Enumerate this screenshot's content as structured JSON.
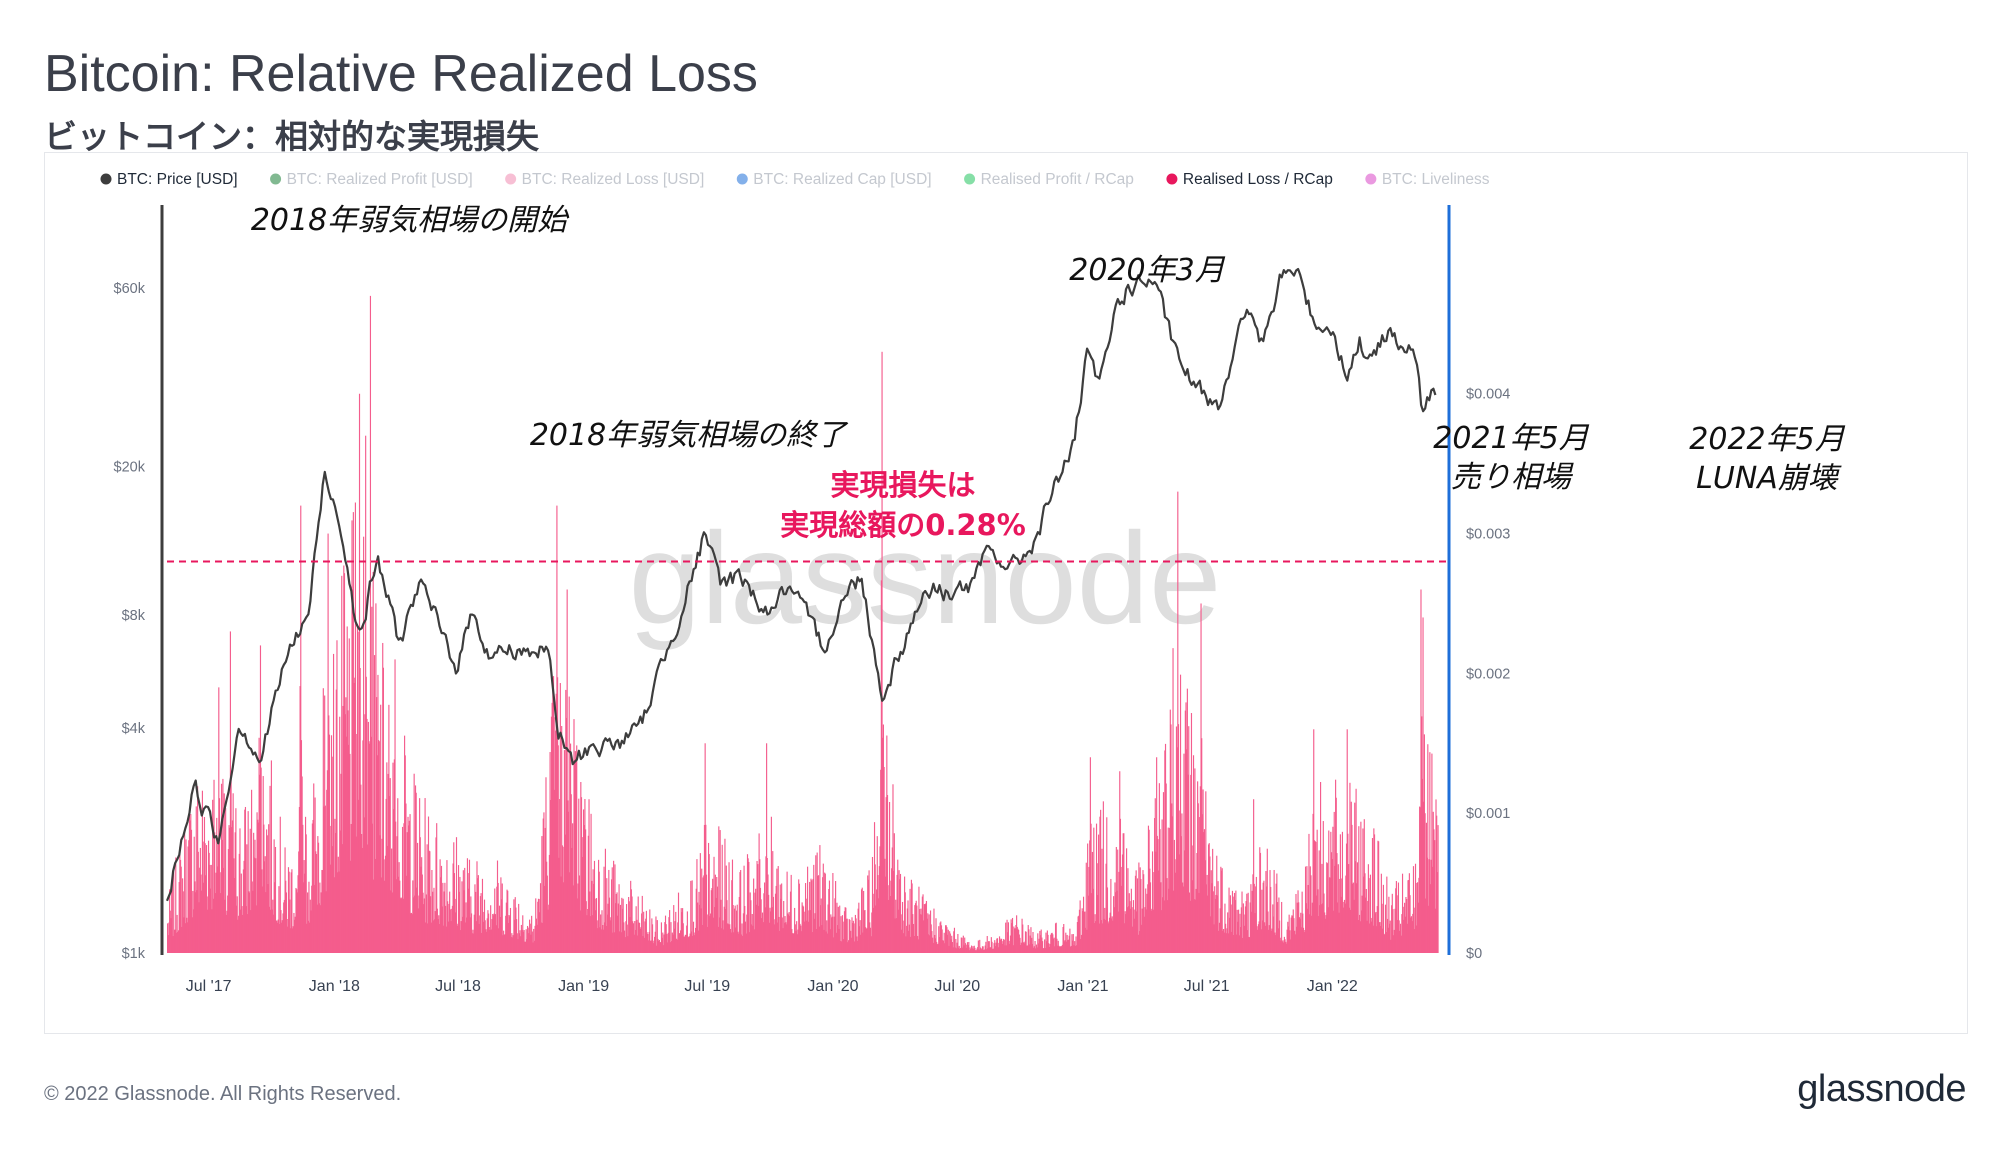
{
  "title": "Bitcoin: Relative Realized Loss",
  "subtitle": "ビットコイン：相対的な実現損失",
  "footer": "© 2022 Glassnode. All Rights Reserved.",
  "brand": "glassnode",
  "watermark": "glassnode",
  "colors": {
    "price": "#3d3d3d",
    "loss": "#f45d8d",
    "threshold": "#e8175d",
    "right_axis": "#1e6fd9"
  },
  "chart_data": {
    "type": "line",
    "legend": [
      {
        "label": "BTC: Price [USD]",
        "color": "#3d3d3d",
        "active": true
      },
      {
        "label": "BTC: Realized Profit [USD]",
        "color": "#1a7f37",
        "active": false
      },
      {
        "label": "BTC: Realized Loss [USD]",
        "color": "#f08bb0",
        "active": false
      },
      {
        "label": "BTC: Realized Cap [USD]",
        "color": "#1e6fd9",
        "active": false
      },
      {
        "label": "Realised Profit / RCap",
        "color": "#22c55e",
        "active": false
      },
      {
        "label": "Realised Loss / RCap",
        "color": "#e8175d",
        "active": true
      },
      {
        "label": "BTC: Liveliness",
        "color": "#d946c7",
        "active": false
      }
    ],
    "x_ticks": [
      "Jul '17",
      "Jan '18",
      "Jul '18",
      "Jan '19",
      "Jul '19",
      "Jan '20",
      "Jul '20",
      "Jan '21",
      "Jul '21",
      "Jan '22"
    ],
    "x_range": [
      "2017-05-01",
      "2022-06-15"
    ],
    "left_axis": {
      "scale": "log",
      "ticks": [
        "$1k",
        "$4k",
        "$8k",
        "$20k",
        "$60k"
      ],
      "tick_values": [
        1000,
        4000,
        8000,
        20000,
        60000
      ],
      "range": [
        1000,
        100000
      ]
    },
    "right_axis": {
      "ticks": [
        "$0",
        "$0.001",
        "$0.002",
        "$0.003",
        "$0.004"
      ],
      "tick_values": [
        0,
        0.001,
        0.002,
        0.003,
        0.004
      ],
      "range": [
        0,
        0.00535
      ]
    },
    "threshold": {
      "value": 0.0028,
      "label_line1": "実現損失は",
      "label_line2": "実現総額の0.28%"
    },
    "price_series": {
      "name": "BTC: Price [USD]",
      "points": [
        [
          "2017-05-01",
          1400
        ],
        [
          "2017-06-10",
          2800
        ],
        [
          "2017-07-15",
          2000
        ],
        [
          "2017-08-15",
          4200
        ],
        [
          "2017-09-15",
          3300
        ],
        [
          "2017-10-20",
          6000
        ],
        [
          "2017-11-25",
          8200
        ],
        [
          "2017-12-17",
          19000
        ],
        [
          "2018-01-10",
          14500
        ],
        [
          "2018-02-06",
          6900
        ],
        [
          "2018-03-05",
          11400
        ],
        [
          "2018-04-06",
          6700
        ],
        [
          "2018-05-05",
          9800
        ],
        [
          "2018-06-28",
          5900
        ],
        [
          "2018-07-25",
          8300
        ],
        [
          "2018-08-15",
          6300
        ],
        [
          "2018-09-20",
          6500
        ],
        [
          "2018-11-10",
          6400
        ],
        [
          "2018-11-25",
          3900
        ],
        [
          "2018-12-15",
          3200
        ],
        [
          "2019-01-15",
          3600
        ],
        [
          "2019-02-15",
          3600
        ],
        [
          "2019-03-25",
          4000
        ],
        [
          "2019-04-15",
          5200
        ],
        [
          "2019-05-20",
          8000
        ],
        [
          "2019-06-26",
          12800
        ],
        [
          "2019-07-20",
          9800
        ],
        [
          "2019-08-20",
          10200
        ],
        [
          "2019-09-25",
          8200
        ],
        [
          "2019-10-27",
          9400
        ],
        [
          "2019-12-18",
          6600
        ],
        [
          "2020-01-15",
          8800
        ],
        [
          "2020-02-12",
          10300
        ],
        [
          "2020-03-12",
          4900
        ],
        [
          "2020-04-15",
          6900
        ],
        [
          "2020-05-15",
          9400
        ],
        [
          "2020-06-20",
          9300
        ],
        [
          "2020-07-25",
          9600
        ],
        [
          "2020-08-15",
          11800
        ],
        [
          "2020-09-25",
          10700
        ],
        [
          "2020-10-25",
          13100
        ],
        [
          "2020-11-25",
          18500
        ],
        [
          "2020-12-20",
          23500
        ],
        [
          "2021-01-08",
          40000
        ],
        [
          "2021-01-25",
          32000
        ],
        [
          "2021-02-21",
          56000
        ],
        [
          "2021-03-13",
          61000
        ],
        [
          "2021-04-14",
          63000
        ],
        [
          "2021-05-20",
          38000
        ],
        [
          "2021-06-22",
          31500
        ],
        [
          "2021-07-20",
          29800
        ],
        [
          "2021-08-15",
          46000
        ],
        [
          "2021-09-06",
          51000
        ],
        [
          "2021-09-22",
          42000
        ],
        [
          "2021-10-20",
          65000
        ],
        [
          "2021-11-09",
          67500
        ],
        [
          "2021-12-05",
          49000
        ],
        [
          "2022-01-01",
          47000
        ],
        [
          "2022-01-24",
          35000
        ],
        [
          "2022-02-10",
          44000
        ],
        [
          "2022-02-24",
          37000
        ],
        [
          "2022-03-28",
          47500
        ],
        [
          "2022-04-20",
          41000
        ],
        [
          "2022-05-05",
          39000
        ],
        [
          "2022-05-12",
          28500
        ],
        [
          "2022-06-01",
          31000
        ]
      ]
    },
    "loss_series": {
      "name": "Realised Loss / RCap",
      "type": "bar",
      "base_points": [
        [
          "2017-05-01",
          0.00025
        ],
        [
          "2017-06-10",
          0.0009
        ],
        [
          "2017-07-15",
          0.001
        ],
        [
          "2017-08-20",
          0.0007
        ],
        [
          "2017-09-15",
          0.0012
        ],
        [
          "2017-10-20",
          0.0005
        ],
        [
          "2017-11-25",
          0.0007
        ],
        [
          "2017-12-28",
          0.0016
        ],
        [
          "2018-01-20",
          0.0019
        ],
        [
          "2018-02-06",
          0.0022
        ],
        [
          "2018-03-15",
          0.0014
        ],
        [
          "2018-04-06",
          0.0011
        ],
        [
          "2018-05-15",
          0.0007
        ],
        [
          "2018-06-25",
          0.0006
        ],
        [
          "2018-07-20",
          0.00045
        ],
        [
          "2018-08-15",
          0.0005
        ],
        [
          "2018-09-20",
          0.00035
        ],
        [
          "2018-10-20",
          0.0002
        ],
        [
          "2018-11-25",
          0.0017
        ],
        [
          "2018-12-20",
          0.0011
        ],
        [
          "2019-01-20",
          0.0006
        ],
        [
          "2019-02-20",
          0.0004
        ],
        [
          "2019-03-20",
          0.0003
        ],
        [
          "2019-04-20",
          0.00015
        ],
        [
          "2019-05-20",
          0.0003
        ],
        [
          "2019-07-15",
          0.0006
        ],
        [
          "2019-08-20",
          0.0004
        ],
        [
          "2019-09-25",
          0.0007
        ],
        [
          "2019-10-25",
          0.0004
        ],
        [
          "2019-11-25",
          0.0005
        ],
        [
          "2019-12-18",
          0.0005
        ],
        [
          "2020-01-20",
          0.0002
        ],
        [
          "2020-02-25",
          0.0004
        ],
        [
          "2020-03-13",
          0.0012
        ],
        [
          "2020-04-15",
          0.0004
        ],
        [
          "2020-05-20",
          0.00025
        ],
        [
          "2020-06-25",
          0.00012
        ],
        [
          "2020-07-25",
          5e-05
        ],
        [
          "2020-08-25",
          0.0001
        ],
        [
          "2020-09-25",
          0.0002
        ],
        [
          "2020-10-25",
          0.0001
        ],
        [
          "2020-11-25",
          0.00015
        ],
        [
          "2020-12-20",
          0.0001
        ],
        [
          "2021-01-12",
          0.0007
        ],
        [
          "2021-02-25",
          0.0007
        ],
        [
          "2021-03-25",
          0.0004
        ],
        [
          "2021-04-20",
          0.0009
        ],
        [
          "2021-05-19",
          0.0016
        ],
        [
          "2021-06-22",
          0.0009
        ],
        [
          "2021-07-20",
          0.0005
        ],
        [
          "2021-08-25",
          0.0003
        ],
        [
          "2021-09-22",
          0.0006
        ],
        [
          "2021-10-25",
          0.0002
        ],
        [
          "2021-11-25",
          0.0005
        ],
        [
          "2021-12-05",
          0.0008
        ],
        [
          "2022-01-24",
          0.0008
        ],
        [
          "2022-02-25",
          0.0007
        ],
        [
          "2022-03-25",
          0.0003
        ],
        [
          "2022-04-20",
          0.0004
        ],
        [
          "2022-05-05",
          0.0005
        ],
        [
          "2022-05-12",
          0.0012
        ],
        [
          "2022-06-01",
          0.0009
        ]
      ],
      "spikes": [
        [
          "2017-07-15",
          0.0019
        ],
        [
          "2017-08-01",
          0.0023
        ],
        [
          "2017-09-14",
          0.0022
        ],
        [
          "2017-11-12",
          0.0032
        ],
        [
          "2017-12-22",
          0.003
        ],
        [
          "2018-02-06",
          0.004
        ],
        [
          "2018-02-15",
          0.0037
        ],
        [
          "2018-02-22",
          0.0047
        ],
        [
          "2018-03-30",
          0.0021
        ],
        [
          "2018-11-22",
          0.0032
        ],
        [
          "2018-12-07",
          0.0026
        ],
        [
          "2019-06-27",
          0.0015
        ],
        [
          "2019-09-25",
          0.0015
        ],
        [
          "2020-03-12",
          0.0043
        ],
        [
          "2021-01-11",
          0.0014
        ],
        [
          "2021-02-23",
          0.0013
        ],
        [
          "2021-04-18",
          0.0014
        ],
        [
          "2021-05-19",
          0.0033
        ],
        [
          "2021-06-22",
          0.0025
        ],
        [
          "2021-09-07",
          0.0011
        ],
        [
          "2021-12-04",
          0.0016
        ],
        [
          "2022-01-22",
          0.0016
        ],
        [
          "2022-05-10",
          0.0026
        ],
        [
          "2022-05-13",
          0.0024
        ]
      ]
    },
    "annotations": [
      {
        "date": "2018-01-15",
        "text": "2018年弱気相場の開始"
      },
      {
        "date": "2020-03-12",
        "text": "2020年3月"
      },
      {
        "date": "2018-12-15",
        "text": "2018年弱気相場の終了"
      },
      {
        "date": "2021-05-19",
        "text": "2021年5月",
        "text2": "売り相場"
      },
      {
        "date": "2022-05-12",
        "text": "2022年5月",
        "text2": "LUNA崩壊"
      }
    ]
  }
}
